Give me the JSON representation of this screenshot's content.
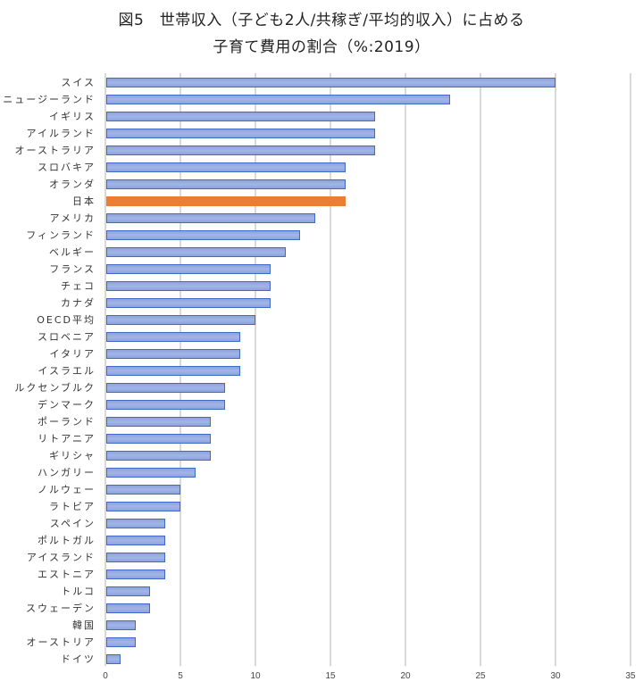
{
  "title_line1": "図5　世帯収入（子ども2人/共稼ぎ/平均的収入）に占める",
  "title_line2": "子育て費用の割合（%:2019）",
  "chart_data": {
    "type": "bar",
    "orientation": "horizontal",
    "title": "図5　世帯収入（子ども2人/共稼ぎ/平均的収入）に占める 子育て費用の割合（%:2019）",
    "xlabel": "",
    "ylabel": "",
    "xlim": [
      0,
      35
    ],
    "x_ticks": [
      0,
      5,
      10,
      15,
      20,
      25,
      30,
      35
    ],
    "grid": true,
    "legend": null,
    "highlight": "日本",
    "colors": {
      "default": "#8da3dc",
      "border": "#3f6ac6",
      "highlight": "#ed7d31"
    },
    "categories": [
      "スイス",
      "ニュージーランド",
      "イギリス",
      "アイルランド",
      "オーストラリア",
      "スロバキア",
      "オランダ",
      "日本",
      "アメリカ",
      "フィンランド",
      "ベルギー",
      "フランス",
      "チェコ",
      "カナダ",
      "OECD平均",
      "スロベニア",
      "イタリア",
      "イスラエル",
      "ルクセンブルク",
      "デンマーク",
      "ポーランド",
      "リトアニア",
      "ギリシャ",
      "ハンガリー",
      "ノルウェー",
      "ラトビア",
      "スペイン",
      "ポルトガル",
      "アイスランド",
      "エストニア",
      "トルコ",
      "スウェーデン",
      "韓国",
      "オーストリア",
      "ドイツ"
    ],
    "values": [
      30,
      23,
      18,
      18,
      18,
      16,
      16,
      16,
      14,
      13,
      12,
      11,
      11,
      11,
      10,
      9,
      9,
      9,
      8,
      8,
      7,
      7,
      7,
      6,
      5,
      5,
      4,
      4,
      4,
      4,
      3,
      3,
      2,
      2,
      1
    ]
  }
}
